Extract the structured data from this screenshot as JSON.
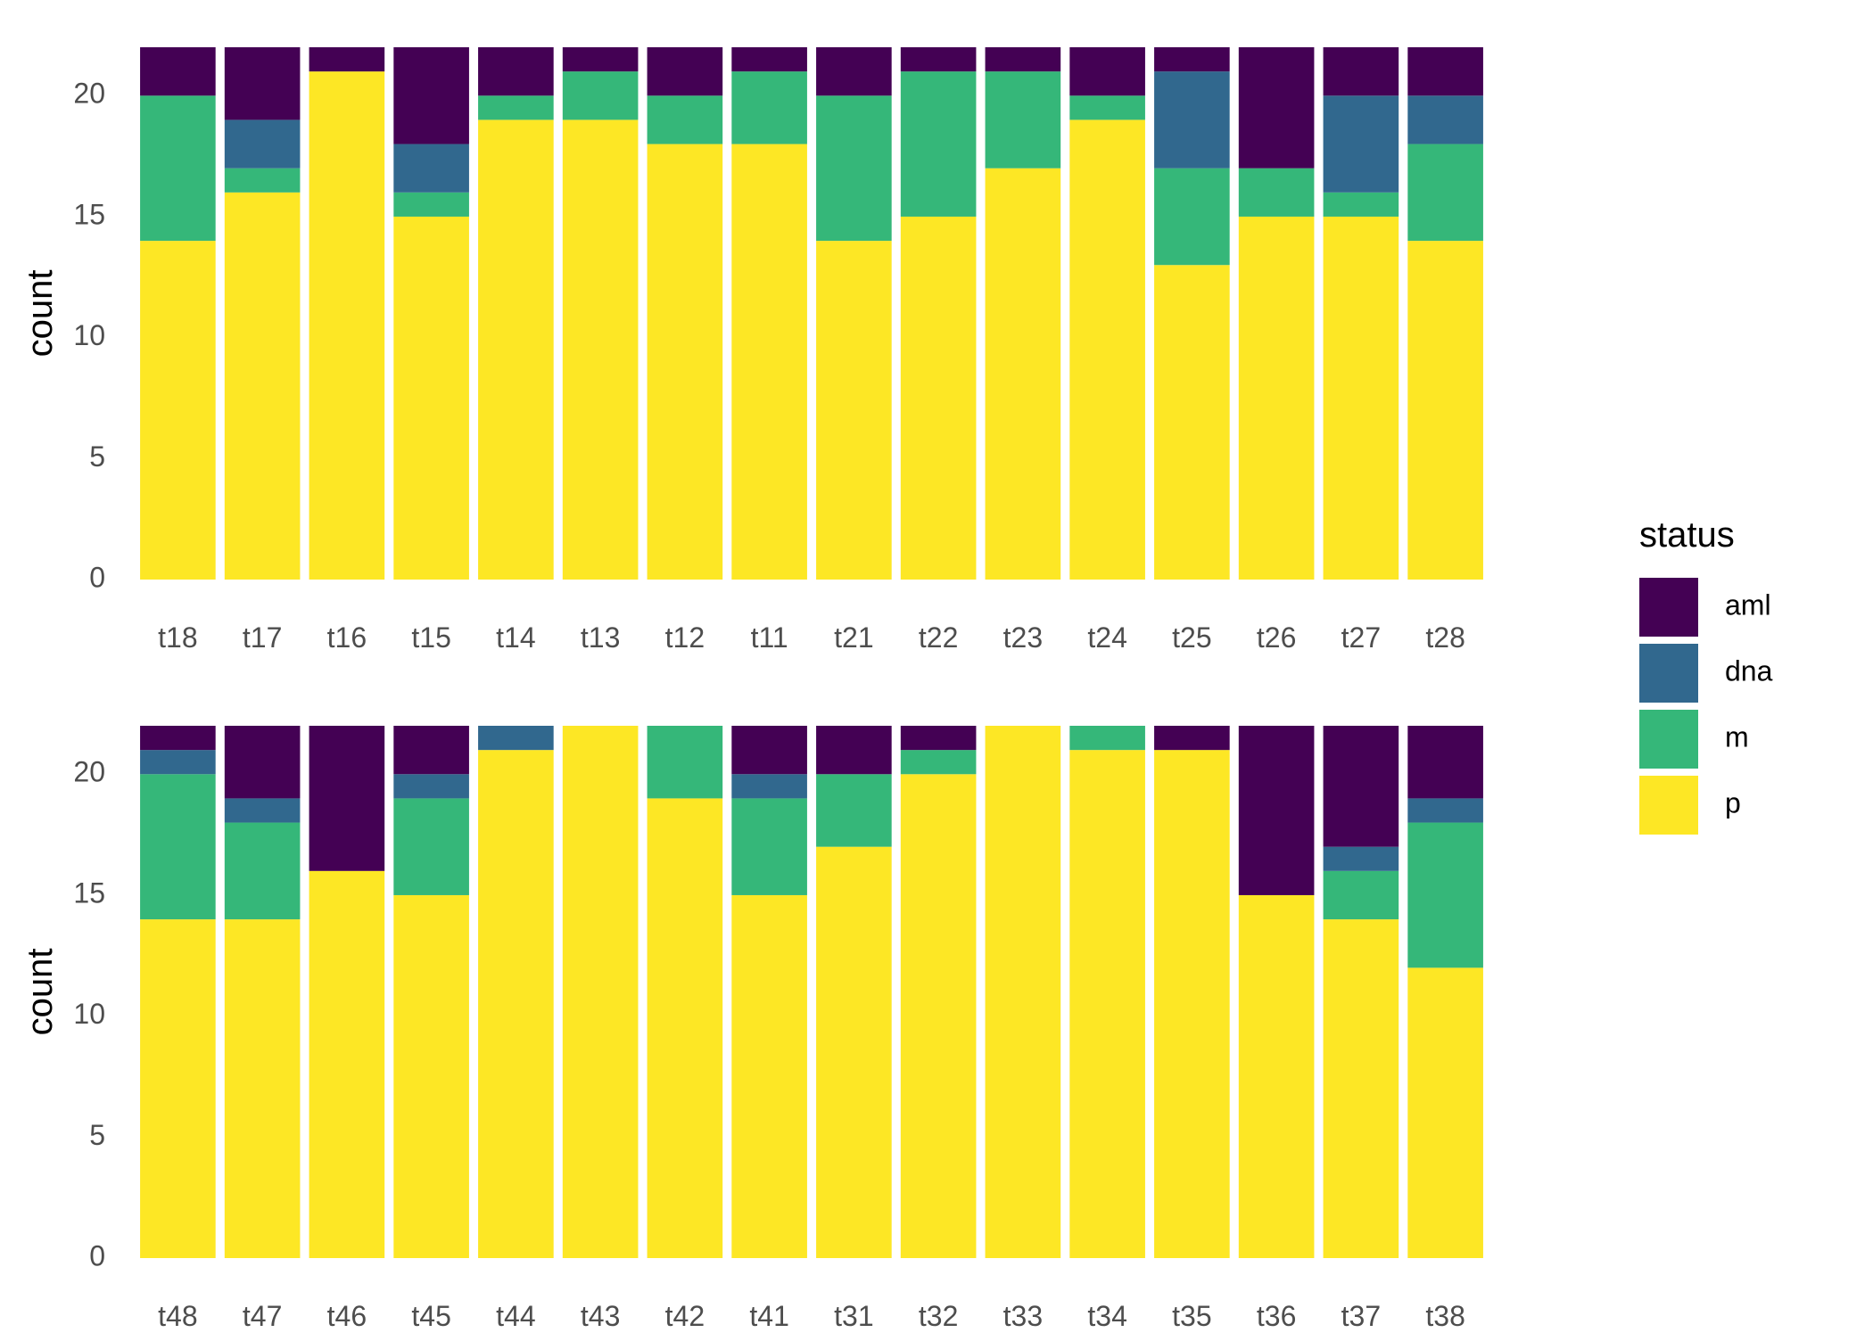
{
  "chart_data": {
    "type": "bar",
    "stacked": true,
    "grid": false,
    "legend": {
      "title": "status",
      "placement": "right",
      "items": [
        {
          "label": "aml",
          "color": "#440154"
        },
        {
          "label": "dna",
          "color": "#31688E"
        },
        {
          "label": "m",
          "color": "#35B779"
        },
        {
          "label": "p",
          "color": "#FDE725"
        }
      ]
    },
    "panels": [
      {
        "ylabel": "count",
        "ylim": [
          0,
          22
        ],
        "yticks": [
          0,
          5,
          10,
          15,
          20
        ],
        "categories": [
          "t18",
          "t17",
          "t16",
          "t15",
          "t14",
          "t13",
          "t12",
          "t11",
          "t21",
          "t22",
          "t23",
          "t24",
          "t25",
          "t26",
          "t27",
          "t28"
        ],
        "series": [
          {
            "name": "p",
            "color": "#FDE725",
            "values": [
              14,
              16,
              21,
              15,
              19,
              19,
              18,
              18,
              14,
              15,
              17,
              19,
              13,
              15,
              15,
              14
            ]
          },
          {
            "name": "m",
            "color": "#35B779",
            "values": [
              6,
              1,
              0,
              1,
              1,
              2,
              2,
              3,
              6,
              6,
              4,
              1,
              4,
              2,
              1,
              4
            ]
          },
          {
            "name": "dna",
            "color": "#31688E",
            "values": [
              0,
              2,
              0,
              2,
              0,
              0,
              0,
              0,
              0,
              0,
              0,
              0,
              4,
              0,
              4,
              2
            ]
          },
          {
            "name": "aml",
            "color": "#440154",
            "values": [
              2,
              3,
              1,
              4,
              2,
              1,
              2,
              1,
              2,
              1,
              1,
              2,
              1,
              5,
              2,
              2
            ]
          }
        ]
      },
      {
        "ylabel": "count",
        "ylim": [
          0,
          22
        ],
        "yticks": [
          0,
          5,
          10,
          15,
          20
        ],
        "categories": [
          "t48",
          "t47",
          "t46",
          "t45",
          "t44",
          "t43",
          "t42",
          "t41",
          "t31",
          "t32",
          "t33",
          "t34",
          "t35",
          "t36",
          "t37",
          "t38"
        ],
        "series": [
          {
            "name": "p",
            "color": "#FDE725",
            "values": [
              14,
              14,
              16,
              15,
              21,
              22,
              19,
              15,
              17,
              20,
              22,
              21,
              21,
              15,
              14,
              12
            ]
          },
          {
            "name": "m",
            "color": "#35B779",
            "values": [
              6,
              4,
              0,
              4,
              0,
              0,
              3,
              4,
              3,
              1,
              0,
              1,
              0,
              0,
              2,
              6
            ]
          },
          {
            "name": "dna",
            "color": "#31688E",
            "values": [
              1,
              1,
              0,
              1,
              1,
              0,
              0,
              1,
              0,
              0,
              0,
              0,
              0,
              0,
              1,
              1
            ]
          },
          {
            "name": "aml",
            "color": "#440154",
            "values": [
              1,
              3,
              6,
              2,
              0,
              0,
              0,
              2,
              2,
              1,
              0,
              0,
              1,
              7,
              5,
              3
            ]
          }
        ]
      }
    ]
  }
}
